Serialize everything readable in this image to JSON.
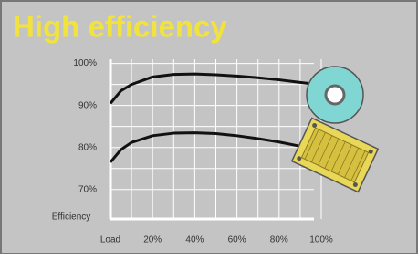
{
  "chart_data": {
    "type": "line",
    "title": "High efficiency",
    "x_label": "Load",
    "y_label": "Efficiency",
    "x": [
      0,
      5,
      10,
      20,
      30,
      40,
      50,
      60,
      70,
      80,
      90,
      95
    ],
    "series": [
      {
        "color": "#111111",
        "values": [
          90.5,
          93.5,
          95,
          96.8,
          97.4,
          97.5,
          97.3,
          97,
          96.6,
          96.1,
          95.5,
          95.2
        ]
      },
      {
        "color": "#111111",
        "values": [
          76.5,
          79.5,
          81.2,
          82.8,
          83.4,
          83.5,
          83.3,
          82.8,
          82.1,
          81.3,
          80.3,
          null
        ]
      }
    ],
    "xlim": [
      0,
      100
    ],
    "xticks": [
      {
        "value": 20,
        "label": "20%"
      },
      {
        "value": 40,
        "label": "40%"
      },
      {
        "value": 60,
        "label": "60%"
      },
      {
        "value": 80,
        "label": "80%"
      },
      {
        "value": 100,
        "label": "100%"
      }
    ],
    "ylim": [
      63,
      101
    ],
    "yticks": [
      {
        "value": 70,
        "label": "70%"
      },
      {
        "value": 80,
        "label": "80%"
      },
      {
        "value": 90,
        "label": "90%"
      },
      {
        "value": 100,
        "label": "100%"
      }
    ],
    "grid": true
  }
}
